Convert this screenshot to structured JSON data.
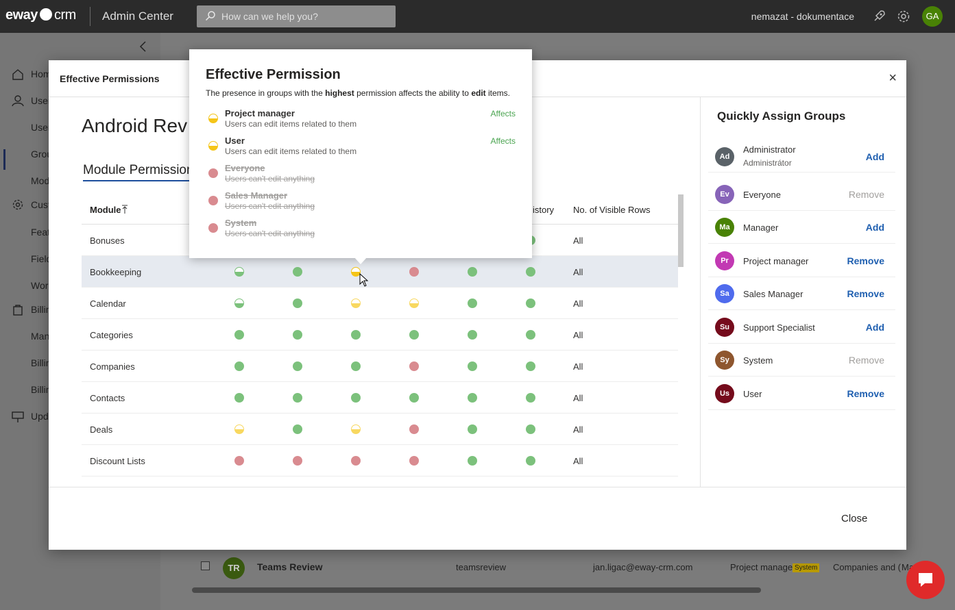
{
  "topbar": {
    "logo_brand": "eway",
    "logo_suffix": "crm",
    "app_name": "Admin Center",
    "search_placeholder": "How can we help you?",
    "tenant": "nemazat - dokumentace",
    "avatar": "GA",
    "icons": [
      "search-icon",
      "rocket-icon",
      "gear-icon"
    ]
  },
  "sidebar": {
    "items": [
      {
        "label": "Hom",
        "icon": "home-icon"
      },
      {
        "label": "User",
        "icon": "person-icon"
      },
      {
        "label": "User"
      },
      {
        "label": "Grou"
      },
      {
        "label": "Mod"
      },
      {
        "label": "Cust",
        "icon": "gear-icon"
      },
      {
        "label": "Feat"
      },
      {
        "label": "Field"
      },
      {
        "label": "Wor"
      },
      {
        "label": "Billin",
        "icon": "bag-icon"
      },
      {
        "label": "Man"
      },
      {
        "label": "Billin"
      },
      {
        "label": "Billin"
      },
      {
        "label": "Upd",
        "icon": "update-icon"
      }
    ]
  },
  "background": {
    "row_initials": "TR",
    "row_name": "Teams Review",
    "row_username": "teamsreview",
    "row_email": "jan.ligac@eway-crm.com",
    "row_group": "Project manager",
    "row_badge": "System",
    "row_modules": "Companies and (",
    "row_more": "Ma"
  },
  "modal": {
    "title": "Effective Permissions",
    "user_name": "Android Rev",
    "tab_label": "Module Permissions",
    "close_label": "Close",
    "table": {
      "headers": {
        "module": "Module",
        "history": "istory",
        "rows": "No. of Visible Rows"
      },
      "rows": [
        {
          "name": "Bonuses",
          "cells": [
            "",
            "",
            "",
            "",
            "",
            "g"
          ],
          "visible": "All"
        },
        {
          "name": "Bookkeeping",
          "cells": [
            "gh",
            "g",
            "yh",
            "r",
            "g",
            "g"
          ],
          "visible": "All"
        },
        {
          "name": "Calendar",
          "cells": [
            "gh",
            "g",
            "ya",
            "ya",
            "g",
            "g"
          ],
          "visible": "All"
        },
        {
          "name": "Categories",
          "cells": [
            "g",
            "g",
            "g",
            "g",
            "g",
            "g"
          ],
          "visible": "All"
        },
        {
          "name": "Companies",
          "cells": [
            "g",
            "g",
            "g",
            "r",
            "g",
            "g"
          ],
          "visible": "All"
        },
        {
          "name": "Contacts",
          "cells": [
            "g",
            "g",
            "g",
            "g",
            "g",
            "g"
          ],
          "visible": "All"
        },
        {
          "name": "Deals",
          "cells": [
            "ya",
            "g",
            "ya",
            "r",
            "g",
            "g"
          ],
          "visible": "All"
        },
        {
          "name": "Discount Lists",
          "cells": [
            "r",
            "r",
            "r",
            "r",
            "g",
            "g"
          ],
          "visible": "All"
        }
      ]
    },
    "quick_assign": {
      "title": "Quickly Assign Groups",
      "groups": [
        {
          "initials": "Ad",
          "name": "Administrator",
          "sub": "Administrátor",
          "action": "Add",
          "state": "add",
          "color": "#5a6268"
        },
        {
          "initials": "Ev",
          "name": "Everyone",
          "sub": "",
          "action": "Remove",
          "state": "dis",
          "color": "#8764b8"
        },
        {
          "initials": "Ma",
          "name": "Manager",
          "sub": "",
          "action": "Add",
          "state": "add",
          "color": "#498205"
        },
        {
          "initials": "Pr",
          "name": "Project manager",
          "sub": "",
          "action": "Remove",
          "state": "rm",
          "color": "#c239b3"
        },
        {
          "initials": "Sa",
          "name": "Sales Manager",
          "sub": "",
          "action": "Remove",
          "state": "rm",
          "color": "#4f6bed"
        },
        {
          "initials": "Su",
          "name": "Support Specialist",
          "sub": "",
          "action": "Add",
          "state": "add",
          "color": "#750b1c"
        },
        {
          "initials": "Sy",
          "name": "System",
          "sub": "",
          "action": "Remove",
          "state": "dis",
          "color": "#8e562e"
        },
        {
          "initials": "Us",
          "name": "User",
          "sub": "",
          "action": "Remove",
          "state": "rm",
          "color": "#750b1c"
        }
      ]
    }
  },
  "tooltip": {
    "title": "Effective Permission",
    "desc_1": "The presence in groups with the ",
    "desc_highest": "highest",
    "desc_2": " permission affects the ability to ",
    "desc_edit": "edit",
    "desc_3": " items.",
    "entries": [
      {
        "name": "Project manager",
        "sub": "Users can edit items related to them",
        "affects": "Affects",
        "state": "yh"
      },
      {
        "name": "User",
        "sub": "Users can edit items related to them",
        "affects": "Affects",
        "state": "yh"
      },
      {
        "name": "Everyone",
        "sub": "Users can't edit anything",
        "affects": "",
        "state": "r"
      },
      {
        "name": "Sales Manager",
        "sub": "Users can't edit anything",
        "affects": "",
        "state": "r"
      },
      {
        "name": "System",
        "sub": "Users can't edit anything",
        "affects": "",
        "state": "r"
      }
    ]
  },
  "colors": {
    "accent": "#1c4e9c",
    "green": "#7cc17c",
    "red": "#d98b90",
    "yellow": "#f5c518",
    "link": "#1f5fb0"
  }
}
